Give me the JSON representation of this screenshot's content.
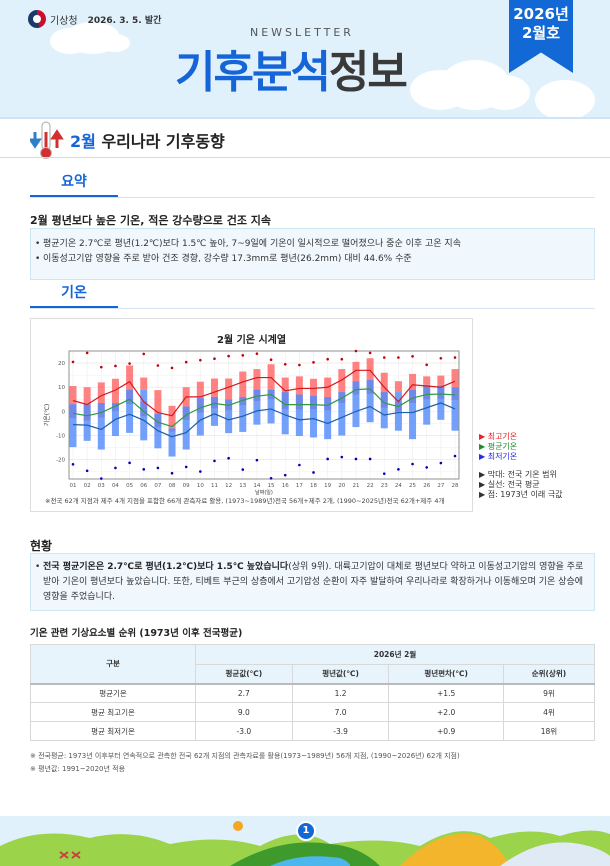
{
  "header": {
    "agency": "기상청",
    "issue_date": "2026. 3. 5. 발간",
    "newsletter_label": "NEWSLETTER",
    "title_part1": "기후분석",
    "title_part2": "정보",
    "ribbon_year": "2026년",
    "ribbon_issue": "2월호"
  },
  "section": {
    "month": "2월",
    "title": "우리나라 기후동향",
    "icon": "thermometer-icon"
  },
  "summary": {
    "tab_label": "요약",
    "headline": "2월 평년보다 높은 기온, 적은 강수량으로 건조 지속",
    "bullets": [
      "평균기온 2.7℃로 평년(1.2℃)보다 1.5℃ 높아, 7~9일에 기온이 일시적으로 떨어졌으나 중순 이후 고온 지속",
      "이동성고기압 영향을 주로 받아 건조 경향, 강수량 17.3mm로 평년(26.2mm) 대비 44.6% 수준"
    ]
  },
  "temperature": {
    "tab_label": "기온",
    "chart_note": "※전국 62개 지점과 제주 4개 지점을 포함한 66개 관측자료 활용, (1973~1989년)전국 56개+제주 2개, (1990~2025년)전국 62개+제주 4개",
    "legend": {
      "max": "최고기온",
      "avg": "평균기온",
      "min": "최저기온",
      "bar_desc": "막대: 전국 기온 범위",
      "line_desc": "실선: 전국 평균",
      "dot_desc": "점: 1973년 이래 극값"
    },
    "legend_colors": {
      "max": "#e8232a",
      "avg": "#1f8a2e",
      "min": "#2a2ae0"
    }
  },
  "chart_data": {
    "type": "line",
    "title": "2월 기온 시계열",
    "xlabel": "날짜(일)",
    "ylabel": "기온(℃)",
    "ylim": [
      -28,
      25
    ],
    "yticks": [
      20,
      10,
      0,
      -10,
      -20
    ],
    "grid": true,
    "legend_position": "right",
    "x": [
      "01",
      "02",
      "03",
      "04",
      "05",
      "06",
      "07",
      "08",
      "09",
      "10",
      "11",
      "12",
      "13",
      "14",
      "15",
      "16",
      "17",
      "18",
      "19",
      "20",
      "21",
      "22",
      "23",
      "24",
      "25",
      "26",
      "27",
      "28"
    ],
    "series": [
      {
        "name": "최고기온",
        "kind": "line",
        "color": "#d7191c",
        "values": [
          4.5,
          2.8,
          6.5,
          8.8,
          12.3,
          4.0,
          -0.5,
          -1.8,
          6.0,
          6.0,
          8.0,
          10.0,
          12.2,
          14.0,
          14.0,
          8.5,
          9.5,
          9.5,
          10.0,
          13.0,
          17.0,
          17.0,
          10.0,
          4.0,
          11.0,
          10.5,
          10.0,
          12.5
        ]
      },
      {
        "name": "평균기온",
        "kind": "line",
        "color": "#2e9a46",
        "values": [
          -0.8,
          -1.8,
          -0.5,
          2.2,
          5.0,
          0.0,
          -4.5,
          -6.3,
          -1.5,
          1.5,
          3.3,
          2.5,
          4.6,
          6.3,
          7.0,
          2.8,
          2.8,
          2.8,
          2.5,
          5.5,
          9.0,
          9.3,
          3.5,
          2.0,
          5.5,
          7.0,
          7.2,
          6.8
        ]
      },
      {
        "name": "최저기온",
        "kind": "line",
        "color": "#1f5fa8",
        "values": [
          -5.5,
          -5.7,
          -7.5,
          -3.3,
          -1.2,
          -3.7,
          -8.0,
          -10.5,
          -8.8,
          -3.6,
          -1.0,
          -3.5,
          -2.0,
          0.2,
          1.0,
          -1.5,
          -3.5,
          -3.0,
          -5.0,
          -2.5,
          0.0,
          2.0,
          -1.5,
          -0.5,
          -0.5,
          1.5,
          3.5,
          1.0
        ]
      },
      {
        "name": "최고기온 범위",
        "kind": "bar-range",
        "color": "#ff6b6b",
        "low": [
          3.0,
          3.0,
          3.5,
          3.5,
          9.0,
          9.0,
          -1.0,
          -7.0,
          2.0,
          5.5,
          6.0,
          5.0,
          6.0,
          9.0,
          9.0,
          8.0,
          7.0,
          6.5,
          6.0,
          8.0,
          12.5,
          13.0,
          8.0,
          8.0,
          9.0,
          11.0,
          11.0,
          10.0
        ],
        "high": [
          10.5,
          10.0,
          12.0,
          13.5,
          19.0,
          14.0,
          8.8,
          2.3,
          10.0,
          12.3,
          13.6,
          13.6,
          16.5,
          17.5,
          19.5,
          14.0,
          14.5,
          13.5,
          14.0,
          17.5,
          20.5,
          22.0,
          16.0,
          12.5,
          15.5,
          14.5,
          14.8,
          17.5
        ]
      },
      {
        "name": "최저기온 범위",
        "kind": "bar-range",
        "color": "#5b8ff9",
        "low": [
          -14.8,
          -12.2,
          -15.8,
          -10.2,
          -8.9,
          -12.0,
          -15.3,
          -18.7,
          -15.8,
          -10.0,
          -6.0,
          -9.0,
          -8.5,
          -5.5,
          -5.0,
          -9.5,
          -10.2,
          -10.8,
          -11.5,
          -10.0,
          -6.5,
          -4.5,
          -7.0,
          -8.0,
          -11.5,
          -5.5,
          -3.5,
          -8.0
        ]
      },
      {
        "name": "극값 최고",
        "kind": "scatter",
        "color": "#c0000a",
        "values": [
          20.5,
          24.2,
          18.3,
          18.8,
          19.8,
          23.8,
          19.0,
          18.0,
          20.4,
          21.2,
          21.8,
          22.9,
          23.2,
          23.9,
          21.4,
          19.5,
          19.2,
          20.3,
          21.6,
          21.6,
          25.0,
          24.2,
          22.3,
          22.3,
          22.8,
          19.3,
          22.0,
          22.3
        ]
      },
      {
        "name": "극값 최저",
        "kind": "scatter",
        "color": "#0000b4",
        "values": [
          -21.9,
          -24.6,
          -27.8,
          -23.4,
          -21.3,
          -24.0,
          -23.4,
          -25.6,
          -23.0,
          -24.9,
          -20.5,
          -19.4,
          -24.1,
          -20.2,
          -27.7,
          -26.4,
          -22.2,
          -25.3,
          -19.7,
          -18.9,
          -19.7,
          -19.7,
          -25.8,
          -24.0,
          -21.8,
          -23.2,
          -21.4,
          -18.5
        ]
      }
    ]
  },
  "status": {
    "heading": "현황",
    "bold_lead": "전국 평균기온은 2.7℃로 평년(1.2℃)보다 1.5℃ 높았습니다",
    "body": "(상위 9위). 대륙고기압이 대체로 평년보다 약하고 이동성고기압의 영향을 주로 받아 기온이 평년보다 높았습니다. 또한, 티베트 부근의 상층에서 고기압성 순환이 자주 발달하여 우리나라로 확장하거나 이동해오며 기온 상승에 영향을 주었습니다."
  },
  "rank_table": {
    "title": "기온 관련 기상요소별 순위 (1973년 이후 전국평균)",
    "col_group": "구분",
    "period": "2026년 2월",
    "columns": [
      "평균값(℃)",
      "평년값(℃)",
      "평년편차(℃)",
      "순위(상위)"
    ],
    "rows": [
      {
        "label": "평균기온",
        "avg": "2.7",
        "normal": "1.2",
        "dev": "+1.5",
        "rank": "9위"
      },
      {
        "label": "평균 최고기온",
        "avg": "9.0",
        "normal": "7.0",
        "dev": "+2.0",
        "rank": "4위"
      },
      {
        "label": "평균 최저기온",
        "avg": "-3.0",
        "normal": "-3.9",
        "dev": "+0.9",
        "rank": "18위"
      }
    ],
    "footnotes": [
      "※ 전국평균: 1973년 이후부터 연속적으로 관측한 전국 62개 지점의 관측자료를 활용(1973~1989년) 56개 지점, (1990~2026년) 62개 지점)",
      "※ 평년값: 1991~2020년 적용"
    ]
  },
  "footer": {
    "page_number": "1"
  }
}
